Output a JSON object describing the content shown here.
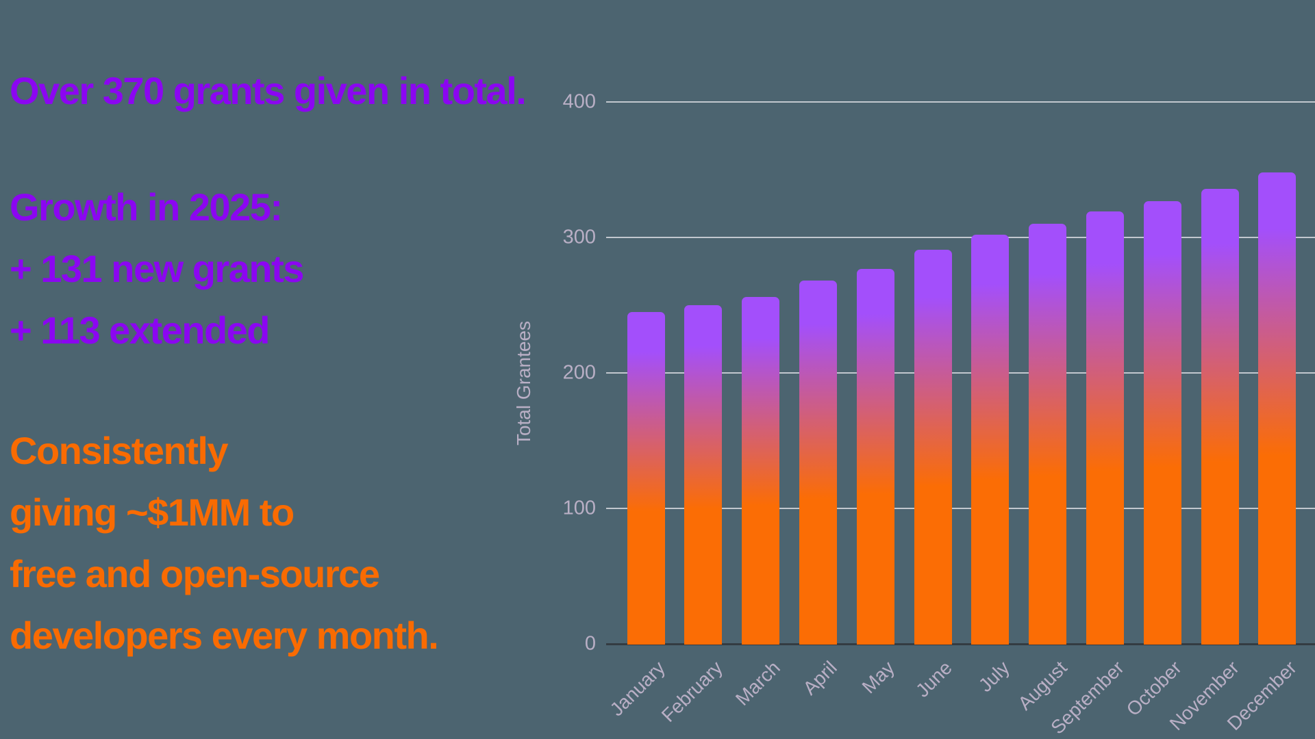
{
  "background": "#4C6470",
  "text_panel": {
    "purple_color": "#8B06F1",
    "orange_color": "#F96B02",
    "total_line": "Over 370 grants given in total.",
    "growth_lines": [
      "Growth in 2025:",
      "+ 131 new grants",
      "+ 113 extended"
    ],
    "giving_lines": [
      "Consistently",
      "giving ~$1MM to",
      "free and open-source",
      "developers every month."
    ]
  },
  "chart_data": {
    "type": "bar",
    "title": "",
    "xlabel": "",
    "ylabel": "Total Grantees",
    "categories": [
      "January",
      "February",
      "March",
      "April",
      "May",
      "June",
      "July",
      "August",
      "September",
      "October",
      "November",
      "December"
    ],
    "values": [
      245,
      250,
      256,
      268,
      277,
      291,
      302,
      310,
      319,
      327,
      336,
      348
    ],
    "ylim": [
      0,
      400
    ],
    "yticks": [
      0,
      100,
      200,
      300,
      400
    ],
    "grid": true,
    "legend": false,
    "colors": {
      "bar_gradient_top": "#A34FFB",
      "bar_gradient_bottom": "#FB6D05",
      "gridline": "rgba(228,228,234,0.78)",
      "axis_line": "#343C42",
      "axis_text": "#B9AFC5"
    }
  }
}
